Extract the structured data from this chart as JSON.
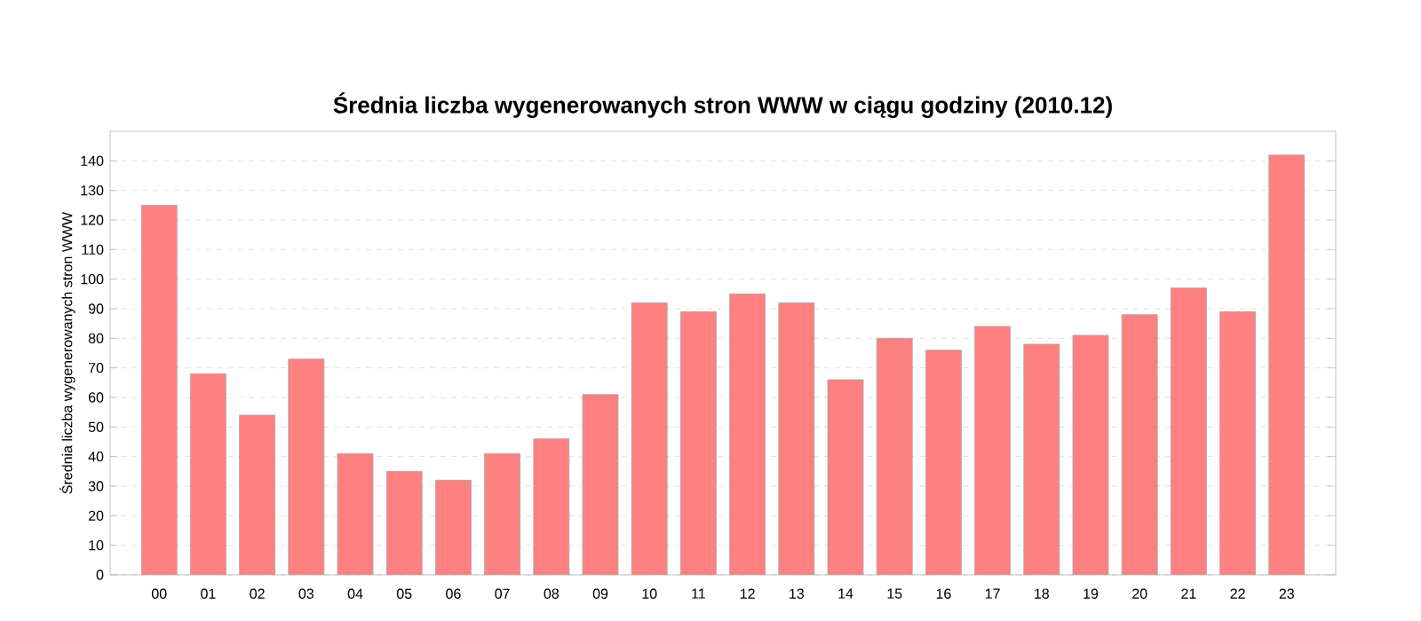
{
  "chart_data": {
    "type": "bar",
    "title": "Średnia liczba wygenerowanych stron WWW w ciągu godziny (2010.12)",
    "ylabel": "Średnia liczba wygenerowanych stron WWW",
    "categories": [
      "00",
      "01",
      "02",
      "03",
      "04",
      "05",
      "06",
      "07",
      "08",
      "09",
      "10",
      "11",
      "12",
      "13",
      "14",
      "15",
      "16",
      "17",
      "18",
      "19",
      "20",
      "21",
      "22",
      "23"
    ],
    "values": [
      125,
      68,
      54,
      73,
      41,
      35,
      32,
      41,
      46,
      61,
      92,
      89,
      95,
      92,
      66,
      80,
      76,
      84,
      78,
      81,
      88,
      97,
      89,
      142
    ],
    "color": "#ff8080",
    "ylim": [
      0,
      150
    ],
    "yticks": [
      0,
      10,
      20,
      30,
      40,
      50,
      60,
      70,
      80,
      90,
      100,
      110,
      120,
      130,
      140
    ],
    "grid": "y"
  }
}
